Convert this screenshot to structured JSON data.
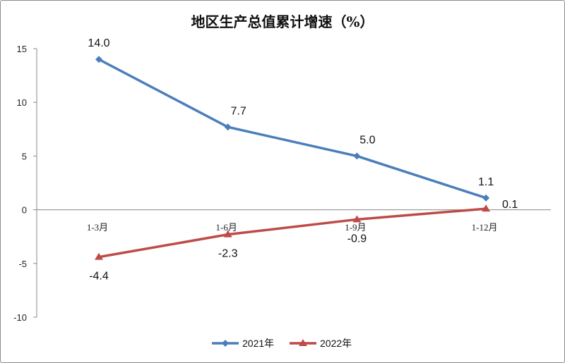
{
  "chart_data": {
    "type": "line",
    "title": "地区生产总值累计增速（%）",
    "categories": [
      "1-3月",
      "1-6月",
      "1-9月",
      "1-12月"
    ],
    "series": [
      {
        "name": "2021年",
        "values": [
          14.0,
          7.7,
          5.0,
          1.1
        ],
        "labels": [
          "14.0",
          "7.7",
          "5.0",
          "1.1"
        ],
        "color": "#4a7ebb",
        "marker": "diamond"
      },
      {
        "name": "2022年",
        "values": [
          -4.4,
          -2.3,
          -0.9,
          0.1
        ],
        "labels": [
          "-4.4",
          "-2.3",
          "-0.9",
          "0.1"
        ],
        "color": "#be4b48",
        "marker": "triangle"
      }
    ],
    "ylim": [
      -10,
      15
    ],
    "yticks": [
      15,
      10,
      5,
      0,
      -5,
      -10
    ],
    "ytick_labels": [
      "15",
      "10",
      "5",
      "0",
      "-5",
      "-10"
    ],
    "xlabel": "",
    "ylabel": "",
    "grid": false,
    "legend": "bottom"
  }
}
